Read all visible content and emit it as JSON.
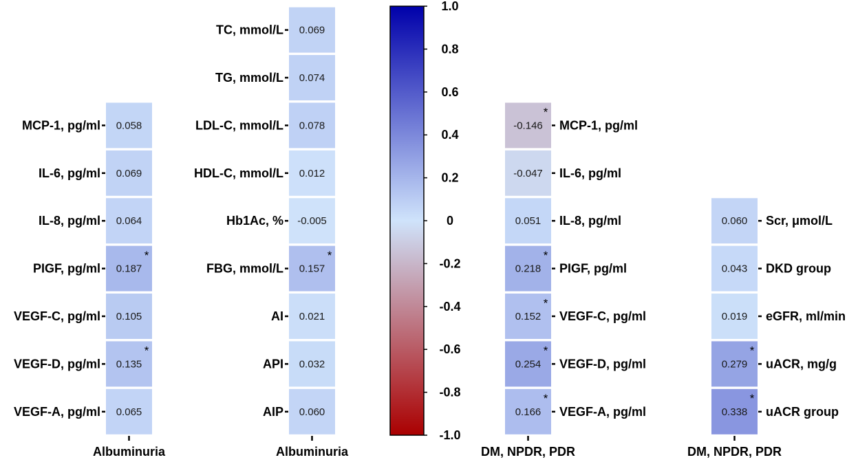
{
  "chart_data": [
    {
      "type": "heatmap",
      "xlabel": "Albuminuria",
      "label_side": "left",
      "rows": [
        {
          "label": "MCP-1, pg/ml",
          "value": 0.058,
          "display": "0.058",
          "significant": false
        },
        {
          "label": "IL-6, pg/ml",
          "value": 0.069,
          "display": "0.069",
          "significant": false
        },
        {
          "label": "IL-8, pg/ml",
          "value": 0.064,
          "display": "0.064",
          "significant": false
        },
        {
          "label": "PIGF, pg/ml",
          "value": 0.187,
          "display": "0.187",
          "significant": true
        },
        {
          "label": "VEGF-C, pg/ml",
          "value": 0.105,
          "display": "0.105",
          "significant": false
        },
        {
          "label": "VEGF-D, pg/ml",
          "value": 0.135,
          "display": "0.135",
          "significant": true
        },
        {
          "label": "VEGF-A, pg/ml",
          "value": 0.065,
          "display": "0.065",
          "significant": false
        }
      ]
    },
    {
      "type": "heatmap",
      "xlabel": "Albuminuria",
      "label_side": "left",
      "rows": [
        {
          "label": "TC, mmol/L",
          "value": 0.069,
          "display": "0.069",
          "significant": false
        },
        {
          "label": "TG, mmol/L",
          "value": 0.074,
          "display": "0.074",
          "significant": false
        },
        {
          "label": "LDL-C, mmol/L",
          "value": 0.078,
          "display": "0.078",
          "significant": false
        },
        {
          "label": "HDL-C, mmol/L",
          "value": 0.012,
          "display": "0.012",
          "significant": false
        },
        {
          "label": "Hb1Ac, %",
          "value": -0.005,
          "display": "-0.005",
          "significant": false
        },
        {
          "label": "FBG, mmol/L",
          "value": 0.157,
          "display": "0.157",
          "significant": true
        },
        {
          "label": "AI",
          "value": 0.021,
          "display": "0.021",
          "significant": false
        },
        {
          "label": "API",
          "value": 0.032,
          "display": "0.032",
          "significant": false
        },
        {
          "label": "AIP",
          "value": 0.06,
          "display": "0.060",
          "significant": false
        }
      ]
    },
    {
      "type": "heatmap",
      "xlabel": "DM, NPDR, PDR",
      "label_side": "right",
      "rows": [
        {
          "label": "MCP-1, pg/ml",
          "value": -0.146,
          "display": "-0.146",
          "significant": true
        },
        {
          "label": "IL-6, pg/ml",
          "value": -0.047,
          "display": "-0.047",
          "significant": false
        },
        {
          "label": "IL-8, pg/ml",
          "value": 0.051,
          "display": "0.051",
          "significant": false
        },
        {
          "label": "PIGF, pg/ml",
          "value": 0.218,
          "display": "0.218",
          "significant": true
        },
        {
          "label": "VEGF-C, pg/ml",
          "value": 0.152,
          "display": "0.152",
          "significant": true
        },
        {
          "label": "VEGF-D, pg/ml",
          "value": 0.254,
          "display": "0.254",
          "significant": true
        },
        {
          "label": "VEGF-A, pg/ml",
          "value": 0.166,
          "display": "0.166",
          "significant": true
        }
      ]
    },
    {
      "type": "heatmap",
      "xlabel": "DM, NPDR, PDR",
      "label_side": "right",
      "rows": [
        {
          "label": "Scr, μmol/L",
          "value": 0.06,
          "display": "0.060",
          "significant": false
        },
        {
          "label": "DKD group",
          "value": 0.043,
          "display": "0.043",
          "significant": false
        },
        {
          "label": "eGFR, ml/min",
          "value": 0.019,
          "display": "0.019",
          "significant": false
        },
        {
          "label": "uACR, mg/g",
          "value": 0.279,
          "display": "0.279",
          "significant": true
        },
        {
          "label": "uACR group",
          "value": 0.338,
          "display": "0.338",
          "significant": true
        }
      ]
    }
  ],
  "colorbar": {
    "min": -1.0,
    "max": 1.0,
    "ticks": [
      "1.0",
      "0.8",
      "0.6",
      "0.4",
      "0.2",
      "0",
      "-0.2",
      "-0.4",
      "-0.6",
      "-0.8",
      "-1.0"
    ],
    "colors": {
      "neg": "#aa0000",
      "mid": "#cfe3fb",
      "pos": "#0000aa"
    }
  },
  "significance_marker": "*"
}
